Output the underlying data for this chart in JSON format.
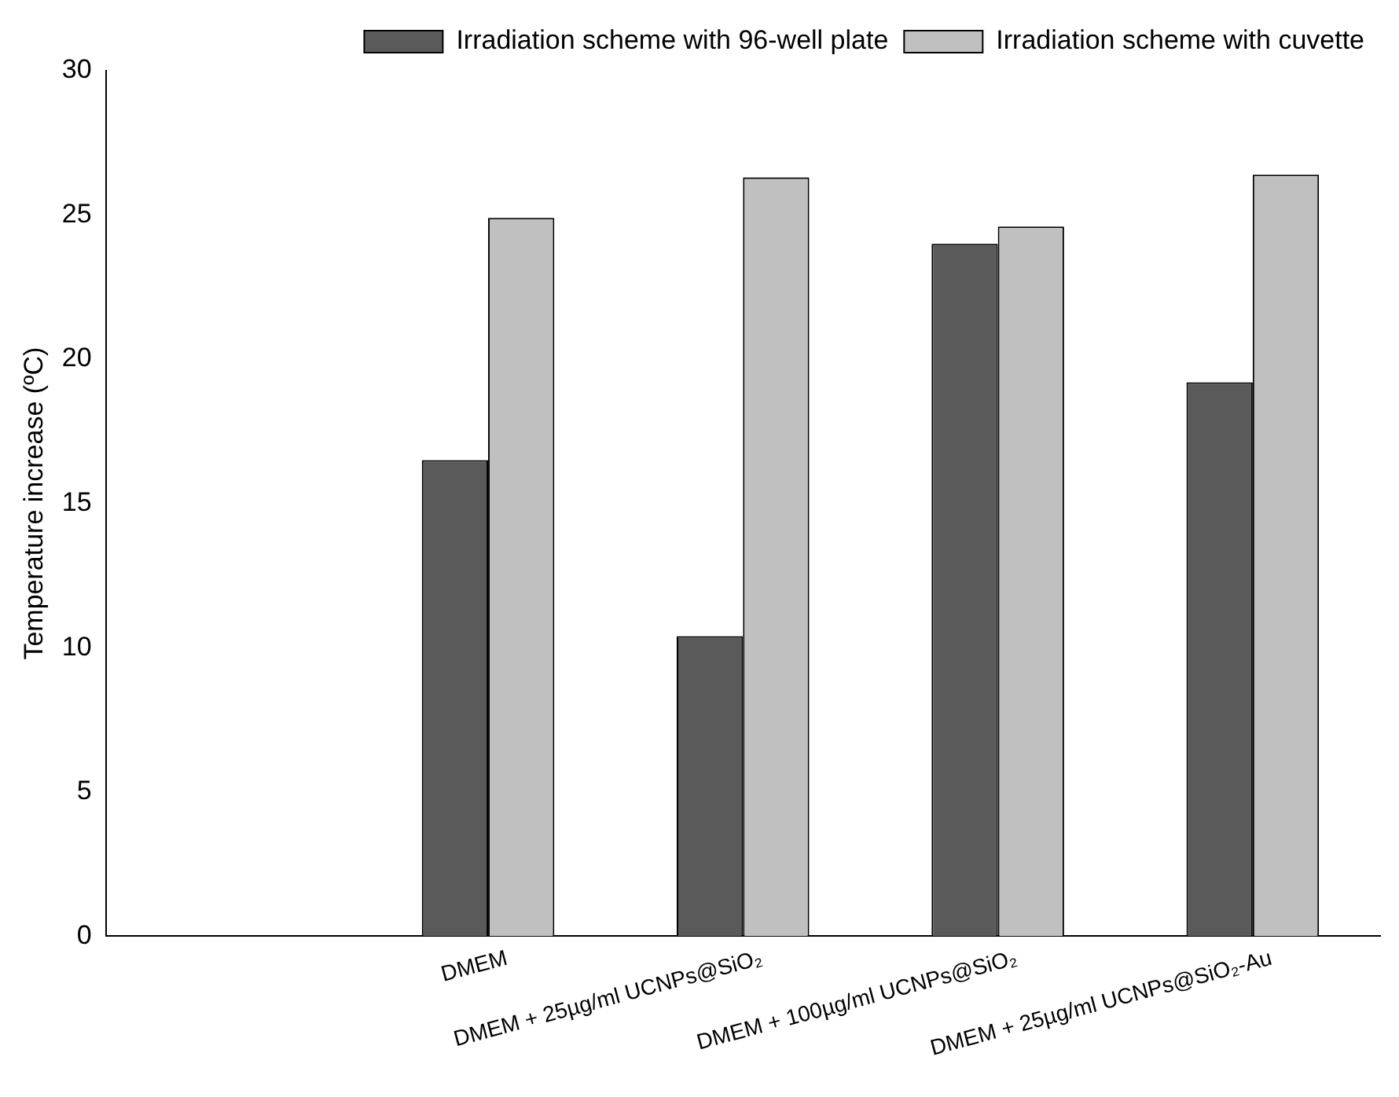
{
  "chart_data": {
    "type": "bar",
    "ylabel": "Temperature increase (ºC)",
    "categories": [
      null,
      "DMEM",
      "DMEM + 25µg/ml UCNPs@SiO₂",
      "DMEM + 100µg/ml UCNPs@SiO₂",
      "DMEM + 25µg/ml UCNPs@SiO₂-Au"
    ],
    "series": [
      {
        "name": "Irradiation scheme with 96-well plate",
        "color": "#5a5a5a",
        "values": [
          null,
          16.5,
          10.4,
          24.0,
          19.2
        ]
      },
      {
        "name": "Irradiation scheme with cuvette",
        "color": "#c0c0c0",
        "values": [
          null,
          24.9,
          26.3,
          24.6,
          26.4
        ]
      }
    ],
    "ylim": [
      0,
      30
    ],
    "yticks": [
      0,
      5,
      10,
      15,
      20,
      25,
      30
    ],
    "grid": false,
    "legend": "top right"
  }
}
